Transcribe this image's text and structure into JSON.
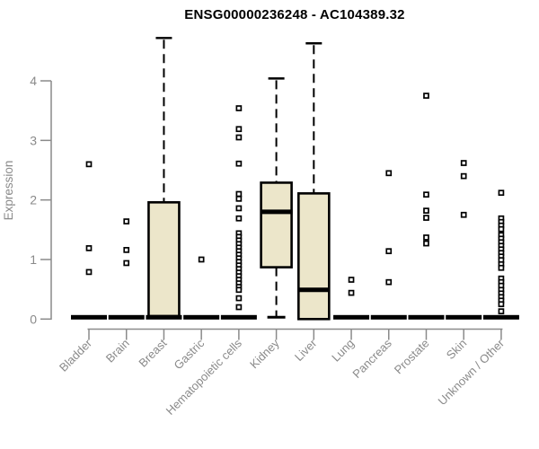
{
  "title": "ENSG00000236248 - AC104389.32",
  "chart_data": {
    "type": "boxplot",
    "title": "ENSG00000236248 - AC104389.32",
    "xlabel": "",
    "ylabel": "Expression",
    "ylim": [
      0,
      4.8
    ],
    "yticks": [
      "0",
      "1",
      "2",
      "3",
      "4"
    ],
    "grid": false,
    "legend": false,
    "colors": {
      "box_fill": "#ece6ca",
      "box_stroke": "#000000",
      "median": "#000000",
      "outlier_stroke": "#000000",
      "outlier_fill": "#ffffff",
      "axis": "#8a8a8a",
      "tick_label": "#8a8a8a",
      "title": "#000000",
      "background": "#ffffff"
    },
    "categories": [
      "Bladder",
      "Brain",
      "Breast",
      "Gastric",
      "Hematopoietic cells",
      "Kidney",
      "Liver",
      "Lung",
      "Pancreas",
      "Prostate",
      "Skin",
      "Unknown / Other"
    ],
    "series": [
      {
        "category": "Bladder",
        "median": 0,
        "q1": 0,
        "q3": 0,
        "whisker_low": null,
        "whisker_high": null,
        "outliers": [
          2.6,
          1.19,
          0.79
        ]
      },
      {
        "category": "Brain",
        "median": 0,
        "q1": 0,
        "q3": 0,
        "whisker_low": null,
        "whisker_high": null,
        "outliers": [
          1.64,
          1.16,
          0.94
        ]
      },
      {
        "category": "Breast",
        "median": 0,
        "q1": 0.05,
        "q3": 1.96,
        "whisker_low": null,
        "whisker_high": 4.72,
        "outliers": []
      },
      {
        "category": "Gastric",
        "median": 0,
        "q1": 0,
        "q3": 0,
        "whisker_low": null,
        "whisker_high": null,
        "outliers": [
          1.0
        ]
      },
      {
        "category": "Hematopoietic cells",
        "median": 0,
        "q1": 0,
        "q3": 0,
        "whisker_low": null,
        "whisker_high": null,
        "outliers": [
          3.54,
          3.19,
          3.05,
          2.61,
          2.1,
          2.02,
          1.86,
          1.69,
          1.44,
          1.38,
          1.32,
          1.26,
          1.2,
          1.14,
          1.08,
          1.02,
          0.96,
          0.9,
          0.84,
          0.78,
          0.72,
          0.66,
          0.6,
          0.54,
          0.49,
          0.35,
          0.2
        ]
      },
      {
        "category": "Kidney",
        "median": 1.8,
        "q1": 0.87,
        "q3": 2.29,
        "whisker_low": 0,
        "whisker_high": 4.04,
        "outliers": []
      },
      {
        "category": "Liver",
        "median": 0.49,
        "q1": 0,
        "q3": 2.11,
        "whisker_low": null,
        "whisker_high": 4.63,
        "outliers": []
      },
      {
        "category": "Lung",
        "median": 0,
        "q1": 0,
        "q3": 0,
        "whisker_low": null,
        "whisker_high": null,
        "outliers": [
          0.66,
          0.44
        ]
      },
      {
        "category": "Pancreas",
        "median": 0,
        "q1": 0,
        "q3": 0,
        "whisker_low": null,
        "whisker_high": null,
        "outliers": [
          2.45,
          1.14,
          0.62
        ]
      },
      {
        "category": "Prostate",
        "median": 0,
        "q1": 0,
        "q3": 0,
        "whisker_low": null,
        "whisker_high": null,
        "outliers": [
          3.75,
          2.09,
          1.82,
          1.7,
          1.37,
          1.27
        ]
      },
      {
        "category": "Skin",
        "median": 0,
        "q1": 0,
        "q3": 0,
        "whisker_low": null,
        "whisker_high": null,
        "outliers": [
          2.62,
          2.4,
          1.75
        ]
      },
      {
        "category": "Unknown / Other",
        "median": 0,
        "q1": 0,
        "q3": 0,
        "whisker_low": null,
        "whisker_high": null,
        "outliers": [
          2.12,
          1.69,
          1.63,
          1.57,
          1.51,
          1.41,
          1.35,
          1.29,
          1.23,
          1.17,
          1.11,
          1.05,
          0.99,
          0.92,
          0.86,
          0.68,
          0.62,
          0.56,
          0.49,
          0.43,
          0.37,
          0.31,
          0.25,
          0.13
        ]
      }
    ]
  }
}
